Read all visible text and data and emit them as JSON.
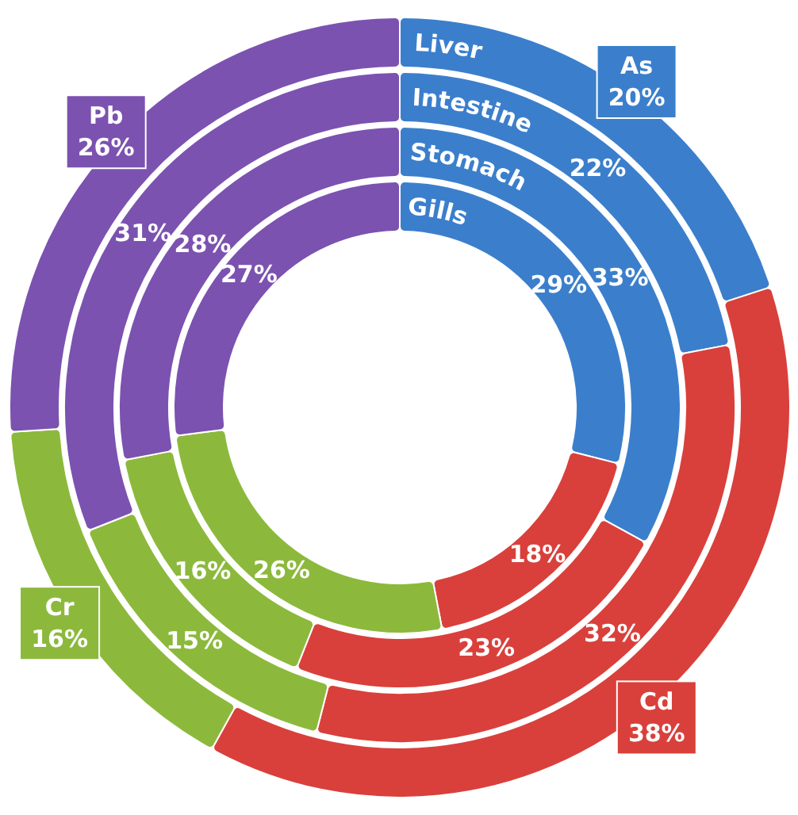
{
  "chart_data": {
    "type": "donut",
    "categories": [
      "As",
      "Cd",
      "Cr",
      "Pb"
    ],
    "colors": [
      "#3b7fcc",
      "#d9403b",
      "#8cb93c",
      "#7b52b0"
    ],
    "data_labels": true,
    "series": [
      {
        "name": "Liver",
        "values": [
          20,
          38,
          16,
          26
        ],
        "value_labels": [
          "20%",
          "38%",
          "16%",
          "26%"
        ]
      },
      {
        "name": "Intestine",
        "values": [
          22,
          32,
          15,
          31
        ],
        "value_labels": [
          "22%",
          "32%",
          "15%",
          "31%"
        ]
      },
      {
        "name": "Stomach",
        "values": [
          33,
          23,
          16,
          28
        ],
        "value_labels": [
          "33%",
          "23%",
          "16%",
          "28%"
        ]
      },
      {
        "name": "Gills",
        "values": [
          29,
          18,
          26,
          27
        ],
        "value_labels": [
          "29%",
          "18%",
          "26%",
          "27%"
        ]
      }
    ]
  }
}
